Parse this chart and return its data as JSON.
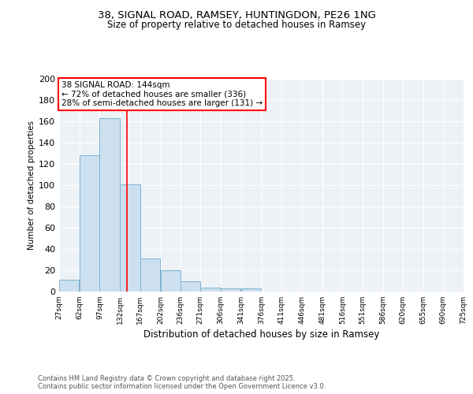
{
  "title1": "38, SIGNAL ROAD, RAMSEY, HUNTINGDON, PE26 1NG",
  "title2": "Size of property relative to detached houses in Ramsey",
  "xlabel": "Distribution of detached houses by size in Ramsey",
  "ylabel": "Number of detached properties",
  "annotation_line1": "38 SIGNAL ROAD: 144sqm",
  "annotation_line2": "← 72% of detached houses are smaller (336)",
  "annotation_line3": "28% of semi-detached houses are larger (131) →",
  "bins": [
    27,
    62,
    97,
    132,
    167,
    202,
    236,
    271,
    306,
    341,
    376,
    411,
    446,
    481,
    516,
    551,
    586,
    620,
    655,
    690,
    725
  ],
  "counts": [
    11,
    128,
    163,
    101,
    31,
    20,
    10,
    4,
    3,
    3,
    0,
    0,
    0,
    0,
    0,
    0,
    0,
    0,
    0,
    0
  ],
  "bar_color": "#cce0f0",
  "bar_edge_color": "#7fb3d3",
  "red_line_x": 144,
  "background_color": "#edf2f7",
  "grid_color": "#ffffff",
  "footer": "Contains HM Land Registry data © Crown copyright and database right 2025.\nContains public sector information licensed under the Open Government Licence v3.0.",
  "ylim": [
    0,
    200
  ],
  "yticks": [
    0,
    20,
    40,
    60,
    80,
    100,
    120,
    140,
    160,
    180,
    200
  ]
}
